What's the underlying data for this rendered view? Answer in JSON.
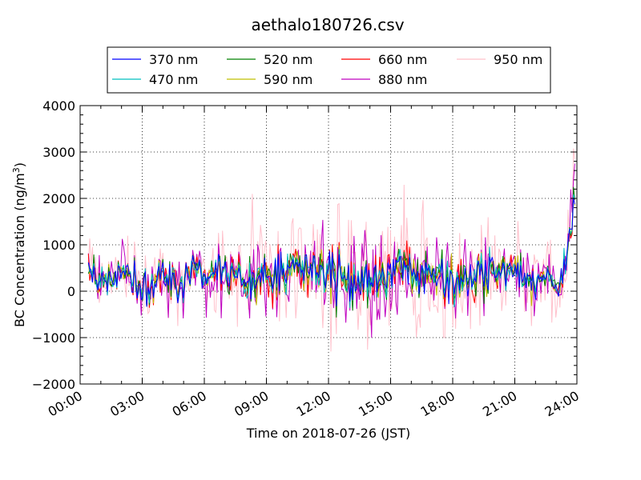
{
  "chart_data": {
    "type": "line",
    "title": "aethalo180726.csv",
    "xlabel": "Time on 2018-07-26 (JST)",
    "ylabel_main": "BC Concentration (ng/m",
    "ylabel_sup": "3",
    "ylabel_close": ")",
    "ylim": [
      -2000,
      4000
    ],
    "yticks": [
      -2000,
      -1000,
      0,
      1000,
      2000,
      3000,
      4000
    ],
    "ytick_labels": [
      "−2000",
      "−1000",
      "0",
      "1000",
      "2000",
      "3000",
      "4000"
    ],
    "xlim_hours": [
      0,
      24
    ],
    "xticks_hours": [
      0,
      3,
      6,
      9,
      12,
      15,
      18,
      21,
      24
    ],
    "xtick_labels": [
      "00:00",
      "03:00",
      "06:00",
      "09:00",
      "12:00",
      "15:00",
      "18:00",
      "21:00",
      "24:00"
    ],
    "grid": true,
    "legend_position": "top-center",
    "series": [
      {
        "name": "370 nm",
        "color": "#0000ff"
      },
      {
        "name": "470 nm",
        "color": "#00bfbf"
      },
      {
        "name": "520 nm",
        "color": "#008000"
      },
      {
        "name": "590 nm",
        "color": "#bfbf00"
      },
      {
        "name": "660 nm",
        "color": "#ff0000"
      },
      {
        "name": "880 nm",
        "color": "#bf00bf"
      },
      {
        "name": "950 nm",
        "color": "#ffc0cb"
      }
    ]
  }
}
